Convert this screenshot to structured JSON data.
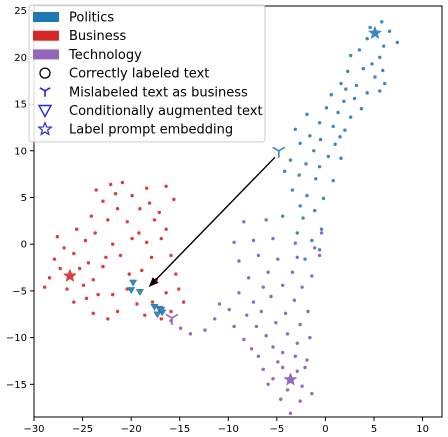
{
  "chart_data": {
    "type": "scatter",
    "title": "",
    "xlabel": "",
    "ylabel": "",
    "xlim": [
      -30,
      12
    ],
    "ylim": [
      -18.5,
      25.5
    ],
    "xticks": [
      -30,
      -25,
      -20,
      -15,
      -10,
      -5,
      0,
      5,
      10
    ],
    "yticks": [
      -15,
      -10,
      -5,
      0,
      5,
      10,
      15,
      20,
      25
    ],
    "grid": false,
    "legend_placement": "top-left",
    "colors": {
      "politics": "#3b87c2",
      "business": "#dd3b3b",
      "technology": "#9566c3"
    },
    "legend": [
      {
        "label": "Politics",
        "marker": "patch",
        "color": "#1f77b4"
      },
      {
        "label": "Business",
        "marker": "patch",
        "color": "#d62728"
      },
      {
        "label": "Technology",
        "marker": "patch",
        "color": "#9467bd"
      },
      {
        "label": "Correctly labeled text",
        "marker": "circle"
      },
      {
        "label": "Mislabeled text as business",
        "marker": "tri-down"
      },
      {
        "label": "Conditionally augmented text",
        "marker": "triangle-down"
      },
      {
        "label": "Label prompt embedding",
        "marker": "star"
      }
    ],
    "series": [
      {
        "name": "Politics",
        "color": "#3b87c2",
        "points": [
          [
            5.1,
            22.6
          ],
          [
            5.8,
            23.8
          ],
          [
            4.3,
            22.0
          ],
          [
            6.0,
            21.2
          ],
          [
            3.5,
            20.8
          ],
          [
            5.6,
            20.0
          ],
          [
            6.6,
            22.8
          ],
          [
            4.8,
            19.3
          ],
          [
            2.6,
            20.2
          ],
          [
            3.9,
            18.8
          ],
          [
            5.1,
            17.9
          ],
          [
            6.1,
            17.2
          ],
          [
            2.3,
            18.5
          ],
          [
            1.6,
            17.2
          ],
          [
            3.2,
            17.0
          ],
          [
            4.3,
            16.2
          ],
          [
            5.6,
            16.4
          ],
          [
            0.6,
            16.0
          ],
          [
            1.9,
            15.3
          ],
          [
            3.0,
            15.6
          ],
          [
            0.1,
            14.6
          ],
          [
            1.3,
            14.1
          ],
          [
            2.6,
            13.6
          ],
          [
            -0.6,
            13.0
          ],
          [
            0.8,
            12.6
          ],
          [
            2.0,
            12.2
          ],
          [
            -1.6,
            11.6
          ],
          [
            -0.5,
            11.2
          ],
          [
            1.0,
            10.7
          ],
          [
            -2.6,
            10.8
          ],
          [
            -1.2,
            10.0
          ],
          [
            0.3,
            9.4
          ],
          [
            1.6,
            9.2
          ],
          [
            -3.6,
            9.0
          ],
          [
            -2.0,
            8.6
          ],
          [
            -0.6,
            8.3
          ],
          [
            -4.2,
            7.8
          ],
          [
            -2.7,
            7.4
          ],
          [
            -1.0,
            7.0
          ],
          [
            0.8,
            6.8
          ],
          [
            -3.4,
            5.8
          ],
          [
            -1.9,
            5.2
          ],
          [
            -0.2,
            4.9
          ],
          [
            -2.6,
            4.1
          ],
          [
            -1.1,
            3.6
          ],
          [
            -4.4,
            3.0
          ],
          [
            -2.3,
            2.8
          ],
          [
            -0.4,
            1.6
          ],
          [
            -2.9,
            1.2
          ],
          [
            -1.4,
            0.4
          ],
          [
            -0.6,
            -0.6
          ],
          [
            -2.1,
            -1.6
          ],
          [
            7.4,
            21.6
          ],
          [
            4.6,
            23.2
          ],
          [
            5.9,
            18.6
          ],
          [
            3.7,
            14.5
          ],
          [
            2.1,
            16.6
          ],
          [
            -1.9,
            13.9
          ],
          [
            1.5,
            11.5
          ],
          [
            -3.1,
            12.3
          ]
        ]
      },
      {
        "name": "Business",
        "color": "#dd3b3b",
        "points": [
          [
            -26.3,
            -3.4
          ],
          [
            -25.3,
            -2.6
          ],
          [
            -27.3,
            -2.6
          ],
          [
            -24.9,
            -4.4
          ],
          [
            -26.6,
            -4.8
          ],
          [
            -28.4,
            -3.6
          ],
          [
            -24.4,
            -2.0
          ],
          [
            -23.9,
            -3.8
          ],
          [
            -27.9,
            -1.6
          ],
          [
            -25.9,
            -1.0
          ],
          [
            -28.9,
            -4.6
          ],
          [
            -23.4,
            -5.4
          ],
          [
            -26.9,
            -0.4
          ],
          [
            -24.7,
            0.4
          ],
          [
            -22.9,
            -2.4
          ],
          [
            -27.6,
            0.8
          ],
          [
            -25.6,
            1.6
          ],
          [
            -23.7,
            1.2
          ],
          [
            -21.9,
            0.0
          ],
          [
            -22.4,
            2.6
          ],
          [
            -24.1,
            3.0
          ],
          [
            -21.4,
            3.8
          ],
          [
            -22.9,
            4.6
          ],
          [
            -21.6,
            5.4
          ],
          [
            -23.6,
            5.8
          ],
          [
            -20.9,
            6.6
          ],
          [
            -22.1,
            6.4
          ],
          [
            -19.9,
            5.2
          ],
          [
            -20.4,
            2.4
          ],
          [
            -19.2,
            1.2
          ],
          [
            -18.4,
            0.2
          ],
          [
            -17.9,
            -1.4
          ],
          [
            -18.9,
            -2.8
          ],
          [
            -17.4,
            -3.8
          ],
          [
            -16.4,
            -5.2
          ],
          [
            -17.8,
            -6.2
          ],
          [
            -16.9,
            -8.0
          ],
          [
            -15.9,
            -7.2
          ],
          [
            -18.6,
            -7.6
          ],
          [
            -19.4,
            -6.4
          ],
          [
            -20.4,
            -4.8
          ],
          [
            -21.9,
            -5.4
          ],
          [
            -21.4,
            -7.2
          ],
          [
            -23.9,
            -7.4
          ],
          [
            -22.4,
            -8.0
          ],
          [
            -25.9,
            -6.2
          ],
          [
            -17.1,
            3.4
          ],
          [
            -16.4,
            1.6
          ],
          [
            -18.1,
            4.4
          ],
          [
            -17.6,
            2.6
          ],
          [
            -15.4,
            -3.2
          ],
          [
            -15.9,
            -1.2
          ],
          [
            -16.9,
            0.6
          ],
          [
            -14.6,
            -6.2
          ],
          [
            -15.1,
            -4.8
          ],
          [
            -19.9,
            0.6
          ],
          [
            -21.1,
            -1.2
          ],
          [
            -20.2,
            -3.2
          ],
          [
            -22.6,
            -1.4
          ],
          [
            -24.6,
            -5.8
          ],
          [
            -19.1,
            3.8
          ],
          [
            -15.6,
            4.8
          ],
          [
            -16.4,
            6.2
          ],
          [
            -18.4,
            6.0
          ]
        ]
      },
      {
        "name": "Technology",
        "color": "#9566c3",
        "points": [
          [
            -3.6,
            -14.5
          ],
          [
            -2.9,
            -13.6
          ],
          [
            -4.4,
            -13.2
          ],
          [
            -2.4,
            -15.2
          ],
          [
            -3.9,
            -15.6
          ],
          [
            -5.4,
            -14.4
          ],
          [
            -1.9,
            -12.4
          ],
          [
            -3.1,
            -12.0
          ],
          [
            -4.9,
            -12.6
          ],
          [
            -6.4,
            -13.4
          ],
          [
            -5.9,
            -15.0
          ],
          [
            -1.4,
            -16.0
          ],
          [
            -2.6,
            -16.8
          ],
          [
            -4.6,
            -16.6
          ],
          [
            -6.9,
            -12.0
          ],
          [
            -7.6,
            -11.2
          ],
          [
            -5.4,
            -11.0
          ],
          [
            -2.9,
            -10.6
          ],
          [
            -1.6,
            -10.0
          ],
          [
            -3.9,
            -9.6
          ],
          [
            -6.1,
            -9.8
          ],
          [
            -8.4,
            -10.2
          ],
          [
            -7.1,
            -8.8
          ],
          [
            -5.1,
            -8.4
          ],
          [
            -2.6,
            -8.6
          ],
          [
            -9.4,
            -8.8
          ],
          [
            -8.1,
            -7.6
          ],
          [
            -6.6,
            -7.2
          ],
          [
            -4.1,
            -7.4
          ],
          [
            -9.9,
            -7.0
          ],
          [
            -7.4,
            -6.2
          ],
          [
            -5.6,
            -5.6
          ],
          [
            -3.2,
            -6.0
          ],
          [
            -1.8,
            -7.2
          ],
          [
            -8.9,
            -5.2
          ],
          [
            -6.4,
            -4.6
          ],
          [
            -4.4,
            -4.4
          ],
          [
            -2.4,
            -4.6
          ],
          [
            -7.9,
            -3.6
          ],
          [
            -5.9,
            -3.0
          ],
          [
            -3.4,
            -3.0
          ],
          [
            -1.4,
            -3.4
          ],
          [
            -8.9,
            -1.8
          ],
          [
            -6.9,
            -1.2
          ],
          [
            -4.9,
            -1.6
          ],
          [
            -2.9,
            -1.4
          ],
          [
            -0.6,
            -1.2
          ],
          [
            -9.4,
            0.2
          ],
          [
            -7.4,
            0.4
          ],
          [
            -5.4,
            0.6
          ],
          [
            -3.1,
            0.1
          ],
          [
            -1.1,
            -0.4
          ],
          [
            -0.4,
            1.2
          ],
          [
            -6.1,
            2.6
          ],
          [
            -8.4,
            2.4
          ],
          [
            -13.9,
            -9.6
          ],
          [
            -14.9,
            -9.0
          ],
          [
            -15.9,
            -8.2
          ],
          [
            -12.4,
            -9.2
          ],
          [
            -11.4,
            -8.0
          ],
          [
            -10.9,
            -6.4
          ],
          [
            -3.6,
            -18.1
          ],
          [
            -2.1,
            -13.2
          ],
          [
            -4.4,
            -11.6
          ]
        ]
      }
    ],
    "special_markers": {
      "label_prompt_embeddings": [
        {
          "label": "Politics",
          "x": 5.1,
          "y": 22.6
        },
        {
          "label": "Business",
          "x": -26.3,
          "y": -3.4
        },
        {
          "label": "Technology",
          "x": -3.6,
          "y": -14.5
        }
      ],
      "mislabeled_text": [
        {
          "label": "Politics",
          "x": -4.8,
          "y": 10.0
        },
        {
          "label": "Technology",
          "x": -15.8,
          "y": -7.9
        }
      ],
      "augmented_text": [
        {
          "label": "Politics",
          "x": -20.0,
          "y": -4.9
        },
        {
          "label": "Politics",
          "x": -19.8,
          "y": -4.1
        },
        {
          "label": "Politics",
          "x": -19.1,
          "y": -5.1
        },
        {
          "label": "Politics",
          "x": -17.6,
          "y": -6.7
        },
        {
          "label": "Politics",
          "x": -17.1,
          "y": -6.9
        },
        {
          "label": "Politics",
          "x": -16.8,
          "y": -7.3
        },
        {
          "label": "Politics",
          "x": -17.3,
          "y": -7.5
        },
        {
          "label": "Politics",
          "x": -16.9,
          "y": -7.0
        }
      ],
      "arrow": {
        "from": [
          -5.2,
          9.3
        ],
        "to": [
          -18.2,
          -4.6
        ]
      }
    }
  }
}
